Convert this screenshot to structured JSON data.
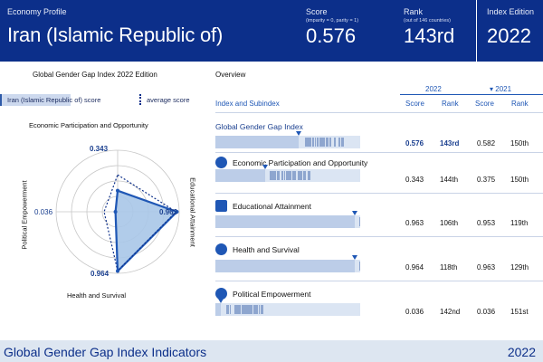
{
  "header": {
    "profile_label": "Economy Profile",
    "country": "Iran (Islamic Republic of)",
    "score_label": "Score",
    "score_note": "(imparity = 0, parity = 1)",
    "score_value": "0.576",
    "rank_label": "Rank",
    "rank_note": "(out of 146 countries)",
    "rank_value": "143rd",
    "edition_label": "Index Edition",
    "edition_value": "2022"
  },
  "left_panel": {
    "title": "Global Gender Gap Index 2022 Edition",
    "legend": {
      "country_score": "Iran (Islamic Republic of) score",
      "average_score": "average score"
    },
    "radar": {
      "axes": [
        "Economic Participation and Opportunity",
        "Educational Attainment",
        "Health and Survival",
        "Political Empowerment"
      ],
      "country_values": [
        0.343,
        0.963,
        0.964,
        0.036
      ],
      "average_values": [
        0.6,
        0.95,
        0.96,
        0.22
      ],
      "labels": {
        "economic": "0.343",
        "educational": "0.963",
        "health": "0.964",
        "political": "0.036"
      }
    }
  },
  "overview": {
    "title": "Overview",
    "year_2022": "2022",
    "year_2021": "▾ 2021",
    "headers": {
      "index": "Index and Subindex",
      "score": "Score",
      "rank": "Rank",
      "score_2021": "Score",
      "rank_2021": "Rank"
    },
    "rows": [
      {
        "title": "Global Gender Gap Index",
        "score": "0.576",
        "rank": "143rd",
        "score_2021": "0.582",
        "rank_2021": "150th",
        "fill": 0.576,
        "icon": "none"
      },
      {
        "title": "Economic Participation and Opportunity",
        "score": "0.343",
        "rank": "144th",
        "score_2021": "0.375",
        "rank_2021": "150th",
        "fill": 0.343,
        "icon": "economy-icon"
      },
      {
        "title": "Educational Attainment",
        "score": "0.963",
        "rank": "106th",
        "score_2021": "0.953",
        "rank_2021": "119th",
        "fill": 0.963,
        "icon": "education-icon"
      },
      {
        "title": "Health and Survival",
        "score": "0.964",
        "rank": "118th",
        "score_2021": "0.963",
        "rank_2021": "129th",
        "fill": 0.964,
        "icon": "health-icon"
      },
      {
        "title": "Political Empowerment",
        "score": "0.036",
        "rank": "142nd",
        "score_2021": "0.036",
        "rank_2021": "151st",
        "fill": 0.036,
        "icon": "politics-icon"
      }
    ]
  },
  "footer": {
    "title": "Global Gender Gap Index Indicators",
    "year": "2022"
  },
  "colors": {
    "brand": "#0c2f8a",
    "accent": "#1f57b5",
    "fill": "#a9c6e8"
  }
}
